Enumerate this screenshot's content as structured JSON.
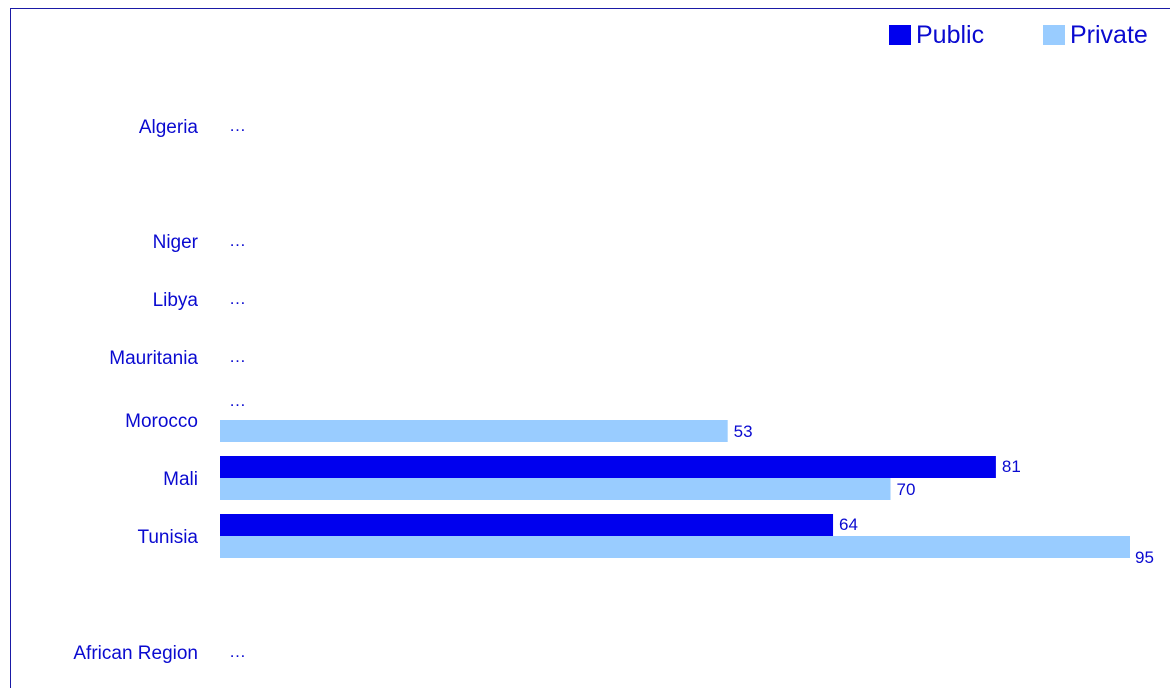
{
  "colors": {
    "public": "#0000ee",
    "private": "#99ccff",
    "text": "#0a0ad0",
    "frame": "#1a1aa6"
  },
  "chart_data": {
    "type": "bar",
    "orientation": "horizontal",
    "title": "",
    "xlabel": "",
    "ylabel": "",
    "legend_position": "top-right",
    "xlim": [
      0,
      95
    ],
    "categories": [
      "Algeria",
      "",
      "Niger",
      "Libya",
      "Mauritania",
      "Morocco",
      "Mali",
      "Tunisia",
      "",
      "African Region"
    ],
    "series": [
      {
        "name": "Public",
        "values": [
          null,
          null,
          null,
          null,
          null,
          null,
          81,
          64,
          null,
          null
        ]
      },
      {
        "name": "Private",
        "values": [
          null,
          null,
          null,
          null,
          null,
          53,
          70,
          95,
          null,
          null
        ]
      }
    ],
    "missing_marker": "…"
  }
}
